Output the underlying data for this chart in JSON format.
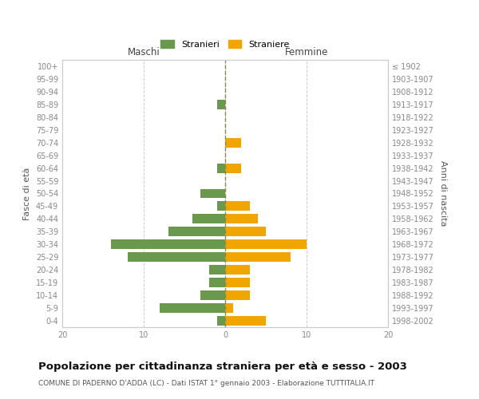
{
  "age_groups": [
    "100+",
    "95-99",
    "90-94",
    "85-89",
    "80-84",
    "75-79",
    "70-74",
    "65-69",
    "60-64",
    "55-59",
    "50-54",
    "45-49",
    "40-44",
    "35-39",
    "30-34",
    "25-29",
    "20-24",
    "15-19",
    "10-14",
    "5-9",
    "0-4"
  ],
  "birth_years": [
    "≤ 1902",
    "1903-1907",
    "1908-1912",
    "1913-1917",
    "1918-1922",
    "1923-1927",
    "1928-1932",
    "1933-1937",
    "1938-1942",
    "1943-1947",
    "1948-1952",
    "1953-1957",
    "1958-1962",
    "1963-1967",
    "1968-1972",
    "1973-1977",
    "1978-1982",
    "1983-1987",
    "1988-1992",
    "1993-1997",
    "1998-2002"
  ],
  "maschi": [
    0,
    0,
    0,
    1,
    0,
    0,
    0,
    0,
    1,
    0,
    3,
    1,
    4,
    7,
    14,
    12,
    2,
    2,
    3,
    8,
    1
  ],
  "femmine": [
    0,
    0,
    0,
    0,
    0,
    0,
    2,
    0,
    2,
    0,
    0,
    3,
    4,
    5,
    10,
    8,
    3,
    3,
    3,
    1,
    5
  ],
  "maschi_color": "#6a994e",
  "femmine_color": "#f0a500",
  "background_color": "#ffffff",
  "grid_color": "#cccccc",
  "title": "Popolazione per cittadinanza straniera per età e sesso - 2003",
  "subtitle": "COMUNE DI PADERNO D'ADDA (LC) - Dati ISTAT 1° gennaio 2003 - Elaborazione TUTTITALIA.IT",
  "xlabel_left": "Maschi",
  "xlabel_right": "Femmine",
  "ylabel_left": "Fasce di età",
  "ylabel_right": "Anni di nascita",
  "legend_maschi": "Stranieri",
  "legend_femmine": "Straniere",
  "xlim": 20,
  "bar_height": 0.75,
  "title_fontsize": 9.5,
  "subtitle_fontsize": 6.5,
  "label_fontsize": 8,
  "tick_fontsize": 7,
  "axis_label_color": "#555555",
  "tick_color": "#888888"
}
